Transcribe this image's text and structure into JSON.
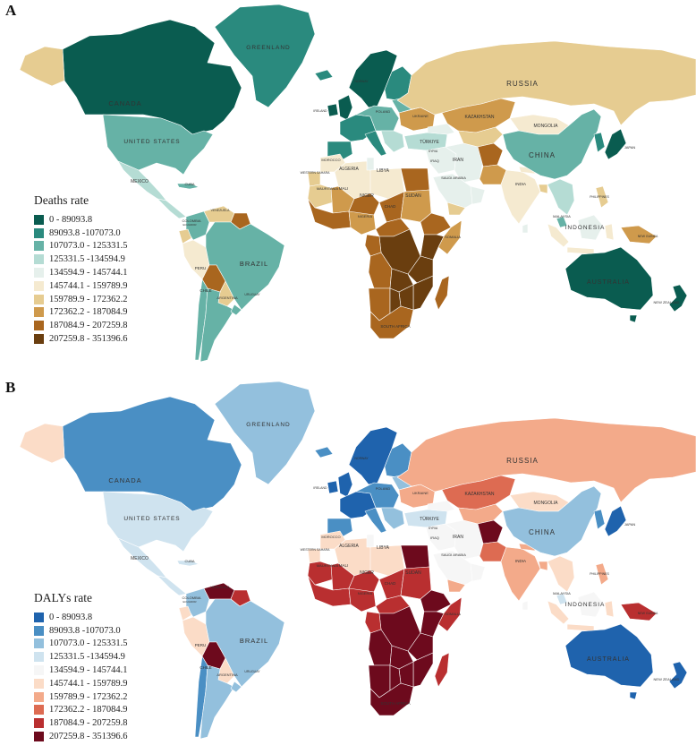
{
  "panels": [
    {
      "letter": "A",
      "legend_title": "Deaths rate",
      "palette": [
        "#0a5c50",
        "#2a8a7e",
        "#66b2a6",
        "#b5dcd4",
        "#e6f0ec",
        "#f5ead0",
        "#e6cc91",
        "#cf9a4c",
        "#a9661f",
        "#6a3e0f"
      ],
      "labels": {
        "canada": "CANADA",
        "greenland": "GREENLAND",
        "united_states": "UNITED STATES",
        "mexico": "MEXICO",
        "cuba": "CUBA",
        "brazil": "BRAZIL",
        "colombia": "COLOMBIA",
        "venezuela": "VENEZUELA",
        "peru": "PERU",
        "chile": "CHILE",
        "argentina": "ARGENTINA",
        "uruguay": "URUGUAY",
        "ecuador": "ECUADOR",
        "russia": "RUSSIA",
        "kazakhstan": "KAZAKHSTAN",
        "mongolia": "MONGOLIA",
        "china": "CHINA",
        "india": "INDIA",
        "iran": "IRAN",
        "iraq": "IRAQ",
        "turkiye": "TÜRKIYE",
        "ukraine": "UKRAINE",
        "poland": "POLAND",
        "algeria": "ALGERIA",
        "libya": "LIBYA",
        "niger": "NIGER",
        "chad": "CHAD",
        "sudan": "SUDAN",
        "mali": "MALI",
        "mauritania": "MAURITANIA",
        "morocco": "MOROCCO",
        "western_sahara": "WESTERN SAHARA",
        "nigeria": "NIGERIA",
        "somalia": "SOMALIA",
        "saudi_arabia": "SAUDI ARABIA",
        "south_africa": "SOUTH AFRICA",
        "indonesia": "INDONESIA",
        "malaysia": "MALAYSIA",
        "philippines": "PHILIPPINES",
        "japan": "JAPAN",
        "australia": "AUSTRALIA",
        "new_zealand": "NEW ZEALAND",
        "new_guinea": "NEW GUINEA",
        "norway": "NORWAY",
        "ireland": "IRELAND",
        "syria": "SYRIA"
      }
    },
    {
      "letter": "B",
      "legend_title": "DALYs rate",
      "palette": [
        "#1f63ad",
        "#4a8fc4",
        "#93c0dd",
        "#cfe3ef",
        "#f6f6f6",
        "#fbdcc7",
        "#f3aa8a",
        "#dd6b52",
        "#b92f30",
        "#6d0a1d"
      ],
      "labels": {
        "canada": "CANADA",
        "greenland": "GREENLAND",
        "united_states": "UNITED STATES",
        "mexico": "MEXICO",
        "cuba": "CUBA",
        "brazil": "BRAZIL",
        "colombia": "COLOMBIA",
        "venezuela": "VENEZUELA",
        "peru": "PERU",
        "chile": "CHILE",
        "argentina": "ARGENTINA",
        "uruguay": "URUGUAY",
        "ecuador": "ECUADOR",
        "russia": "RUSSIA",
        "kazakhstan": "KAZAKHSTAN",
        "mongolia": "MONGOLIA",
        "china": "CHINA",
        "india": "INDIA",
        "iran": "IRAN",
        "iraq": "IRAQ",
        "turkiye": "TÜRKIYE",
        "ukraine": "UKRAINE",
        "poland": "POLAND",
        "algeria": "ALGERIA",
        "libya": "LIBYA",
        "niger": "NIGER",
        "chad": "CHAD",
        "sudan": "SUDAN",
        "mali": "MALI",
        "mauritania": "MAURITANIA",
        "morocco": "MOROCCO",
        "western_sahara": "WESTERN SAHARA",
        "nigeria": "NIGERIA",
        "somalia": "SOMALIA",
        "saudi_arabia": "SAUDI ARABIA",
        "south_africa": "SOUTH AFRICA",
        "indonesia": "INDONESIA",
        "malaysia": "MALAYSIA",
        "philippines": "PHILIPPINES",
        "japan": "JAPAN",
        "australia": "AUSTRALIA",
        "new_zealand": "NEW ZEALAND",
        "new_guinea": "NEW GUINEA",
        "norway": "NORWAY",
        "ireland": "IRELAND",
        "syria": "SYRIA"
      }
    }
  ],
  "legend_bins": [
    "0 - 89093.8",
    "89093.8 -107073.0",
    "107073.0 - 125331.5",
    "125331.5 -134594.9",
    "134594.9 - 145744.1",
    "145744.1 - 159789.9",
    "159789.9 - 172362.2",
    "172362.2 - 187084.9",
    "187084.9 - 207259.8",
    "207259.8 - 351396.6"
  ],
  "regions": {
    "greenland": [
      1,
      2
    ],
    "canada": [
      0,
      1
    ],
    "alaska": [
      6,
      5
    ],
    "united_states": [
      2,
      3
    ],
    "mexico": [
      3,
      3
    ],
    "central_america": [
      3,
      3
    ],
    "cuba": [
      2,
      3
    ],
    "colombia": [
      2,
      2
    ],
    "venezuela": [
      6,
      9
    ],
    "guyana": [
      8,
      8
    ],
    "ecuador": [
      6,
      5
    ],
    "peru": [
      5,
      5
    ],
    "brazil": [
      2,
      2
    ],
    "bolivia": [
      8,
      9
    ],
    "paraguay": [
      6,
      5
    ],
    "chile": [
      2,
      1
    ],
    "argentina": [
      2,
      2
    ],
    "uruguay": [
      2,
      2
    ],
    "iceland": [
      1,
      1
    ],
    "scandinavia": [
      0,
      0
    ],
    "finland": [
      1,
      1
    ],
    "uk": [
      0,
      0
    ],
    "ireland": [
      0,
      0
    ],
    "west_europe": [
      1,
      0
    ],
    "iberia": [
      1,
      1
    ],
    "central_europe": [
      2,
      1
    ],
    "italy": [
      1,
      1
    ],
    "balkans": [
      3,
      2
    ],
    "baltics": [
      2,
      2
    ],
    "ukraine": [
      7,
      6
    ],
    "russia": [
      6,
      6
    ],
    "kazakhstan": [
      7,
      7
    ],
    "central_asia": [
      6,
      6
    ],
    "turkiye": [
      3,
      3
    ],
    "caucasus": [
      4,
      4
    ],
    "syria_iraq": [
      4,
      4
    ],
    "iran": [
      4,
      4
    ],
    "afghanistan": [
      8,
      9
    ],
    "pakistan": [
      7,
      7
    ],
    "india": [
      5,
      6
    ],
    "nepal": [
      5,
      6
    ],
    "bangladesh": [
      6,
      6
    ],
    "mongolia": [
      5,
      5
    ],
    "china": [
      2,
      2
    ],
    "korea": [
      1,
      1
    ],
    "japan": [
      0,
      0
    ],
    "sea_mainland": [
      3,
      5
    ],
    "sri_lanka": [
      4,
      4
    ],
    "malaysia": [
      2,
      3
    ],
    "sumatra": [
      5,
      5
    ],
    "java": [
      5,
      5
    ],
    "borneo": [
      4,
      4
    ],
    "sulawesi": [
      5,
      5
    ],
    "philippines": [
      6,
      6
    ],
    "new_guinea": [
      7,
      8
    ],
    "australia": [
      0,
      0
    ],
    "tasmania": [
      0,
      0
    ],
    "new_zealand": [
      0,
      0
    ],
    "arabia": [
      4,
      4
    ],
    "yemen": [
      6,
      6
    ],
    "oman": [
      4,
      4
    ],
    "morocco": [
      5,
      5
    ],
    "western_sahara": [
      6,
      5
    ],
    "algeria": [
      5,
      5
    ],
    "tunisia": [
      4,
      4
    ],
    "libya": [
      5,
      5
    ],
    "egypt": [
      8,
      9
    ],
    "mauritania": [
      6,
      8
    ],
    "mali": [
      7,
      8
    ],
    "niger": [
      8,
      8
    ],
    "chad": [
      8,
      8
    ],
    "sudan": [
      7,
      8
    ],
    "west_coast_africa": [
      8,
      8
    ],
    "nigeria": [
      7,
      8
    ],
    "central_africa": [
      8,
      8
    ],
    "horn_of_africa": [
      8,
      9
    ],
    "somalia": [
      7,
      8
    ],
    "east_africa": [
      9,
      9
    ],
    "drc": [
      9,
      9
    ],
    "congo_gabon": [
      8,
      8
    ],
    "angola": [
      8,
      9
    ],
    "zambia": [
      9,
      9
    ],
    "tanzania": [
      9,
      9
    ],
    "mozambique": [
      9,
      9
    ],
    "zimbabwe": [
      9,
      9
    ],
    "namibia": [
      8,
      9
    ],
    "botswana": [
      9,
      9
    ],
    "south_africa": [
      8,
      9
    ],
    "madagascar": [
      8,
      8
    ]
  }
}
